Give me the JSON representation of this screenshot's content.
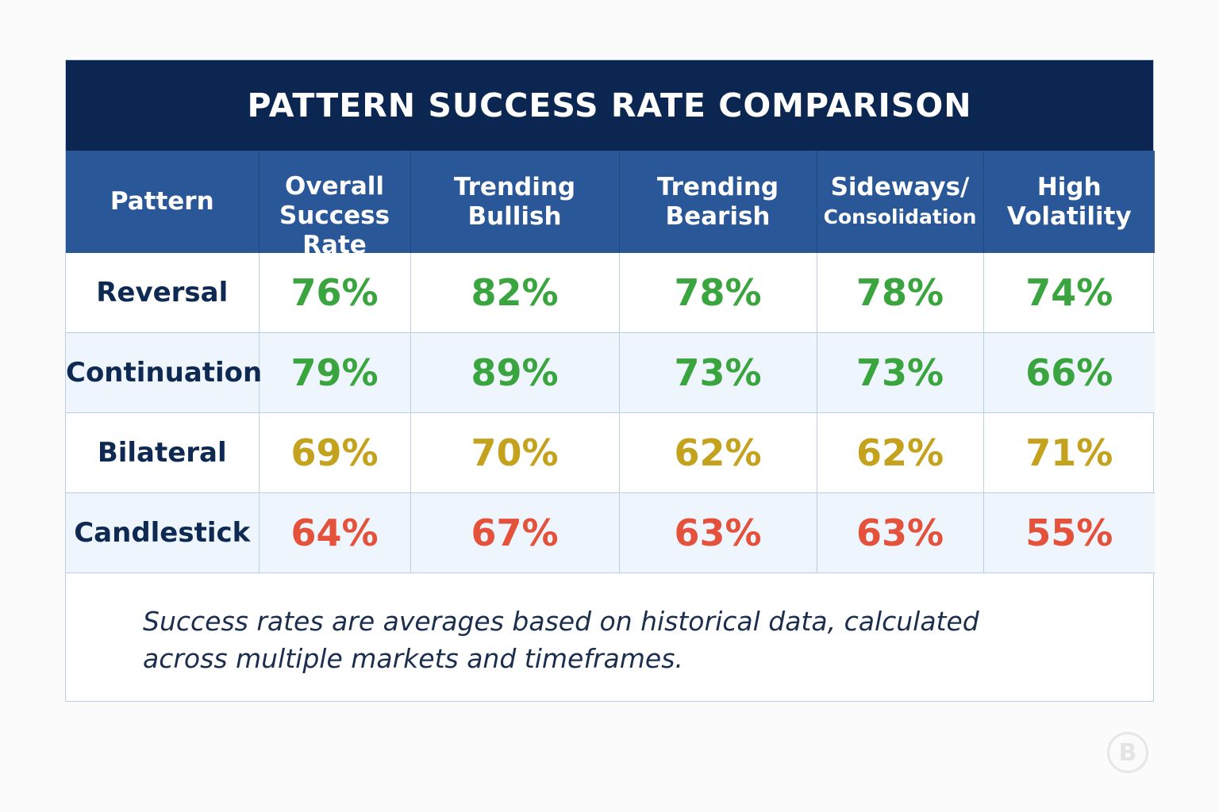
{
  "chart_data": {
    "type": "table",
    "title": "PATTERN SUCCESS RATE COMPARISON",
    "columns": [
      "Pattern",
      "Overall Success Rate",
      "Trending Bullish",
      "Trending Bearish",
      "Sideways/ Consolidation",
      "High Volatility"
    ],
    "rows": [
      {
        "label": "Reversal",
        "values": [
          "76%",
          "82%",
          "78%",
          "78%",
          "74%"
        ],
        "color": "#3aa53f"
      },
      {
        "label": "Continuation",
        "values": [
          "79%",
          "89%",
          "73%",
          "73%",
          "66%"
        ],
        "color": "#3aa53f"
      },
      {
        "label": "Bilateral",
        "values": [
          "69%",
          "70%",
          "62%",
          "62%",
          "71%"
        ],
        "color": "#c4a21d"
      },
      {
        "label": "Candlestick",
        "values": [
          "64%",
          "67%",
          "63%",
          "63%",
          "55%"
        ],
        "color": "#e4523c"
      }
    ],
    "footnote": "Success rates are averages based on historical data, calculated across multiple markets and timeframes."
  },
  "header": {
    "col0": "Pattern",
    "col1_line1": "Overall",
    "col1_line2": "Success",
    "col1_line3": "Rate",
    "col2_line1": "Trending",
    "col2_line2": "Bullish",
    "col3_line1": "Trending",
    "col3_line2": "Bearish",
    "col4_line1": "Sideways/",
    "col4_line2": "Consolidation",
    "col5_line1": "High",
    "col5_line2": "Volatility"
  },
  "footnote_lines": [
    "Success rates are averages based on historical data, calculated",
    "across multiple markets and timeframes."
  ],
  "watermark": {
    "letter": "B"
  },
  "colors": {
    "title_bg": "#0b2650",
    "header_bg": "#2a5797",
    "alt_row_bg": "#eef5fd",
    "high": "#3aa53f",
    "medium": "#c4a21d",
    "low": "#e4523c"
  }
}
